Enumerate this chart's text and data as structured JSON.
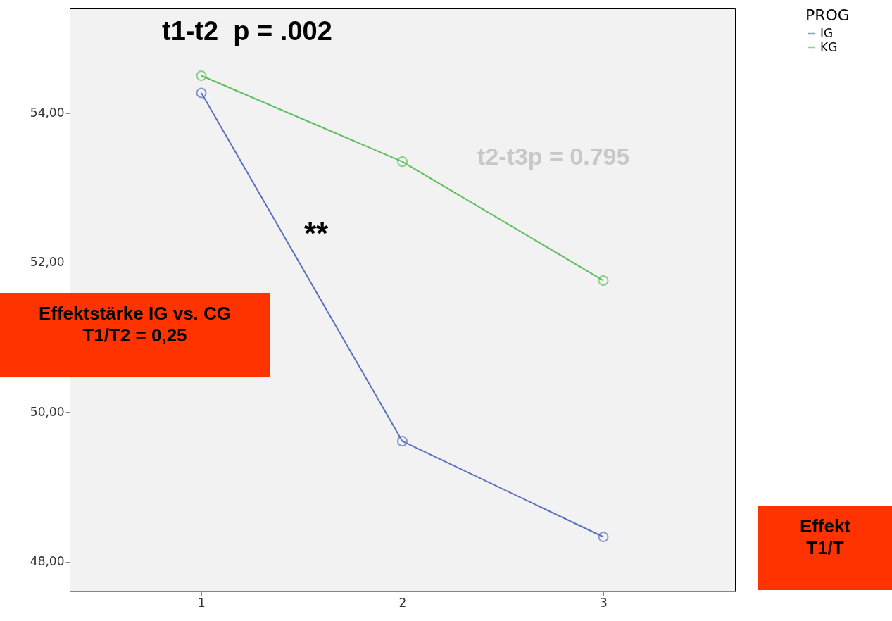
{
  "chart_data": {
    "type": "line",
    "categories": [
      "1",
      "2",
      "3"
    ],
    "series": [
      {
        "name": "IG",
        "color": "#5b6fbf",
        "values": [
          54.27,
          49.61,
          48.33
        ]
      },
      {
        "name": "KG",
        "color": "#5cbf5c",
        "values": [
          54.5,
          53.35,
          51.76
        ]
      }
    ],
    "ylim": [
      47.6,
      55.4
    ],
    "yticks": [
      {
        "value": 48,
        "label": "48,00"
      },
      {
        "value": 50,
        "label": "50,00"
      },
      {
        "value": 52,
        "label": "52,00"
      },
      {
        "value": 54,
        "label": "54,00"
      }
    ],
    "legend_title": "PROG",
    "legend": "top right",
    "marker": "circle",
    "line_style": "solid",
    "grid": false,
    "annotations": [
      "t1-t2  p = .002",
      "t2-t3p = 0.795",
      "**",
      "Effektstärke IG vs. CG\nT1/T2 = 0,25",
      "Effekt\nT1/T"
    ]
  }
}
